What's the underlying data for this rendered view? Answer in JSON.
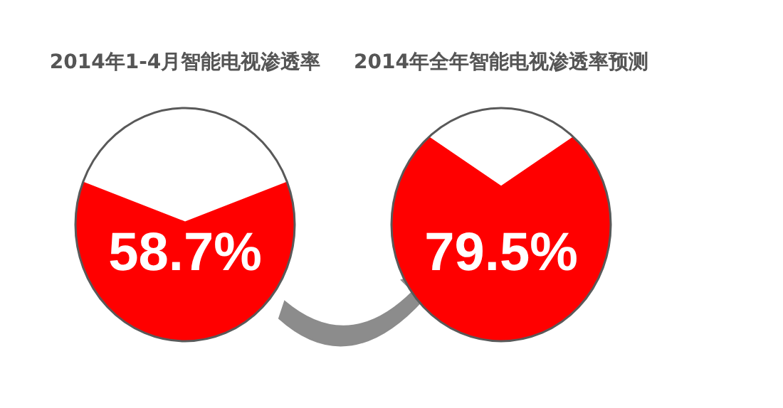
{
  "chart_data": [
    {
      "type": "other",
      "title": "2014年1-4月智能电视渗透率",
      "values": [
        58.7
      ],
      "value_labels": [
        "58.7%"
      ],
      "color": "#ff0000"
    },
    {
      "type": "other",
      "title": "2014年全年智能电视渗透率预测",
      "values": [
        79.5
      ],
      "value_labels": [
        "79.5%"
      ],
      "color": "#ff0000"
    }
  ]
}
